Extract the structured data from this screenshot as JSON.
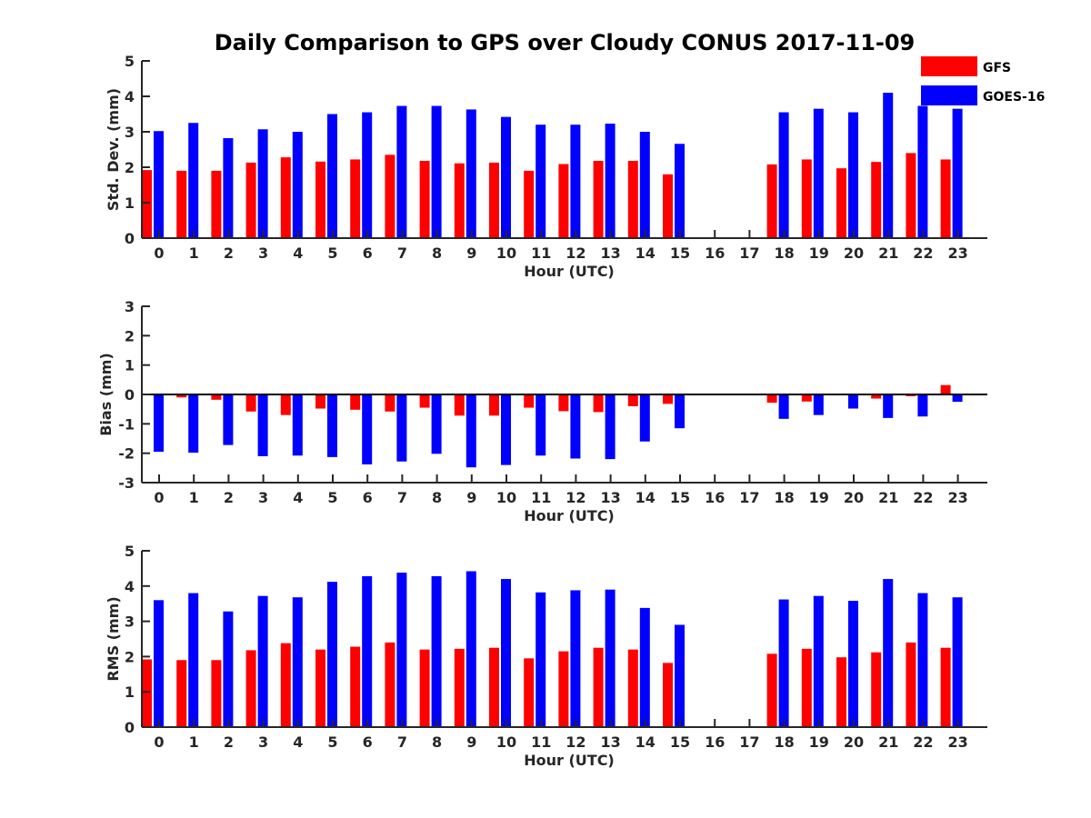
{
  "figure": {
    "title": "Daily Comparison to GPS over Cloudy CONUS 2017-11-09"
  },
  "legend": [
    {
      "name": "GFS",
      "color": "#ff0000"
    },
    {
      "name": "GOES-16",
      "color": "#0000ff"
    }
  ],
  "chart_data": [
    {
      "type": "bar",
      "categories": [
        "0",
        "1",
        "2",
        "3",
        "4",
        "5",
        "6",
        "7",
        "8",
        "9",
        "10",
        "11",
        "12",
        "13",
        "14",
        "15",
        "16",
        "17",
        "18",
        "19",
        "20",
        "21",
        "22",
        "23"
      ],
      "xlabel": "Hour (UTC)",
      "ylabel": "Std. Dev. (mm)",
      "ylim": [
        0,
        5
      ],
      "yticks": [
        "0",
        "1",
        "2",
        "3",
        "4",
        "5"
      ],
      "series": [
        {
          "name": "GFS",
          "color": "#ff0000",
          "values": [
            1.92,
            1.9,
            1.9,
            2.13,
            2.28,
            2.16,
            2.22,
            2.35,
            2.18,
            2.11,
            2.13,
            1.9,
            2.09,
            2.18,
            2.18,
            1.8,
            null,
            null,
            2.08,
            2.22,
            1.97,
            2.15,
            2.4,
            2.22
          ]
        },
        {
          "name": "GOES-16",
          "color": "#0000ff",
          "values": [
            3.02,
            3.25,
            2.82,
            3.07,
            3.0,
            3.5,
            3.55,
            3.73,
            3.73,
            3.63,
            3.42,
            3.2,
            3.2,
            3.23,
            3.0,
            2.66,
            null,
            null,
            3.55,
            3.65,
            3.55,
            4.1,
            3.73,
            3.65
          ]
        }
      ]
    },
    {
      "type": "bar",
      "categories": [
        "0",
        "1",
        "2",
        "3",
        "4",
        "5",
        "6",
        "7",
        "8",
        "9",
        "10",
        "11",
        "12",
        "13",
        "14",
        "15",
        "16",
        "17",
        "18",
        "19",
        "20",
        "21",
        "22",
        "23"
      ],
      "xlabel": "Hour (UTC)",
      "ylabel": "Bias (mm)",
      "ylim": [
        -3,
        3
      ],
      "yticks": [
        "-3",
        "-2",
        "-1",
        "0",
        "1",
        "2",
        "3"
      ],
      "series": [
        {
          "name": "GFS",
          "color": "#ff0000",
          "values": [
            -0.02,
            -0.1,
            -0.18,
            -0.58,
            -0.7,
            -0.48,
            -0.52,
            -0.58,
            -0.45,
            -0.72,
            -0.72,
            -0.45,
            -0.57,
            -0.6,
            -0.4,
            -0.32,
            null,
            null,
            -0.28,
            -0.24,
            0.03,
            -0.14,
            -0.06,
            0.32
          ]
        },
        {
          "name": "GOES-16",
          "color": "#0000ff",
          "values": [
            -1.95,
            -1.98,
            -1.72,
            -2.1,
            -2.08,
            -2.13,
            -2.38,
            -2.28,
            -2.02,
            -2.48,
            -2.4,
            -2.08,
            -2.18,
            -2.2,
            -1.6,
            -1.15,
            null,
            null,
            -0.83,
            -0.7,
            -0.48,
            -0.8,
            -0.75,
            -0.25
          ]
        }
      ]
    },
    {
      "type": "bar",
      "categories": [
        "0",
        "1",
        "2",
        "3",
        "4",
        "5",
        "6",
        "7",
        "8",
        "9",
        "10",
        "11",
        "12",
        "13",
        "14",
        "15",
        "16",
        "17",
        "18",
        "19",
        "20",
        "21",
        "22",
        "23"
      ],
      "xlabel": "Hour (UTC)",
      "ylabel": "RMS (mm)",
      "ylim": [
        0,
        5
      ],
      "yticks": [
        "0",
        "1",
        "2",
        "3",
        "4",
        "5"
      ],
      "series": [
        {
          "name": "GFS",
          "color": "#ff0000",
          "values": [
            1.92,
            1.9,
            1.9,
            2.18,
            2.38,
            2.2,
            2.28,
            2.4,
            2.2,
            2.22,
            2.25,
            1.95,
            2.15,
            2.25,
            2.2,
            1.82,
            null,
            null,
            2.08,
            2.22,
            1.98,
            2.12,
            2.4,
            2.25
          ]
        },
        {
          "name": "GOES-16",
          "color": "#0000ff",
          "values": [
            3.6,
            3.8,
            3.28,
            3.72,
            3.68,
            4.12,
            4.28,
            4.38,
            4.28,
            4.42,
            4.2,
            3.82,
            3.88,
            3.9,
            3.38,
            2.9,
            null,
            null,
            3.62,
            3.72,
            3.58,
            4.2,
            3.8,
            3.68
          ]
        }
      ]
    }
  ]
}
